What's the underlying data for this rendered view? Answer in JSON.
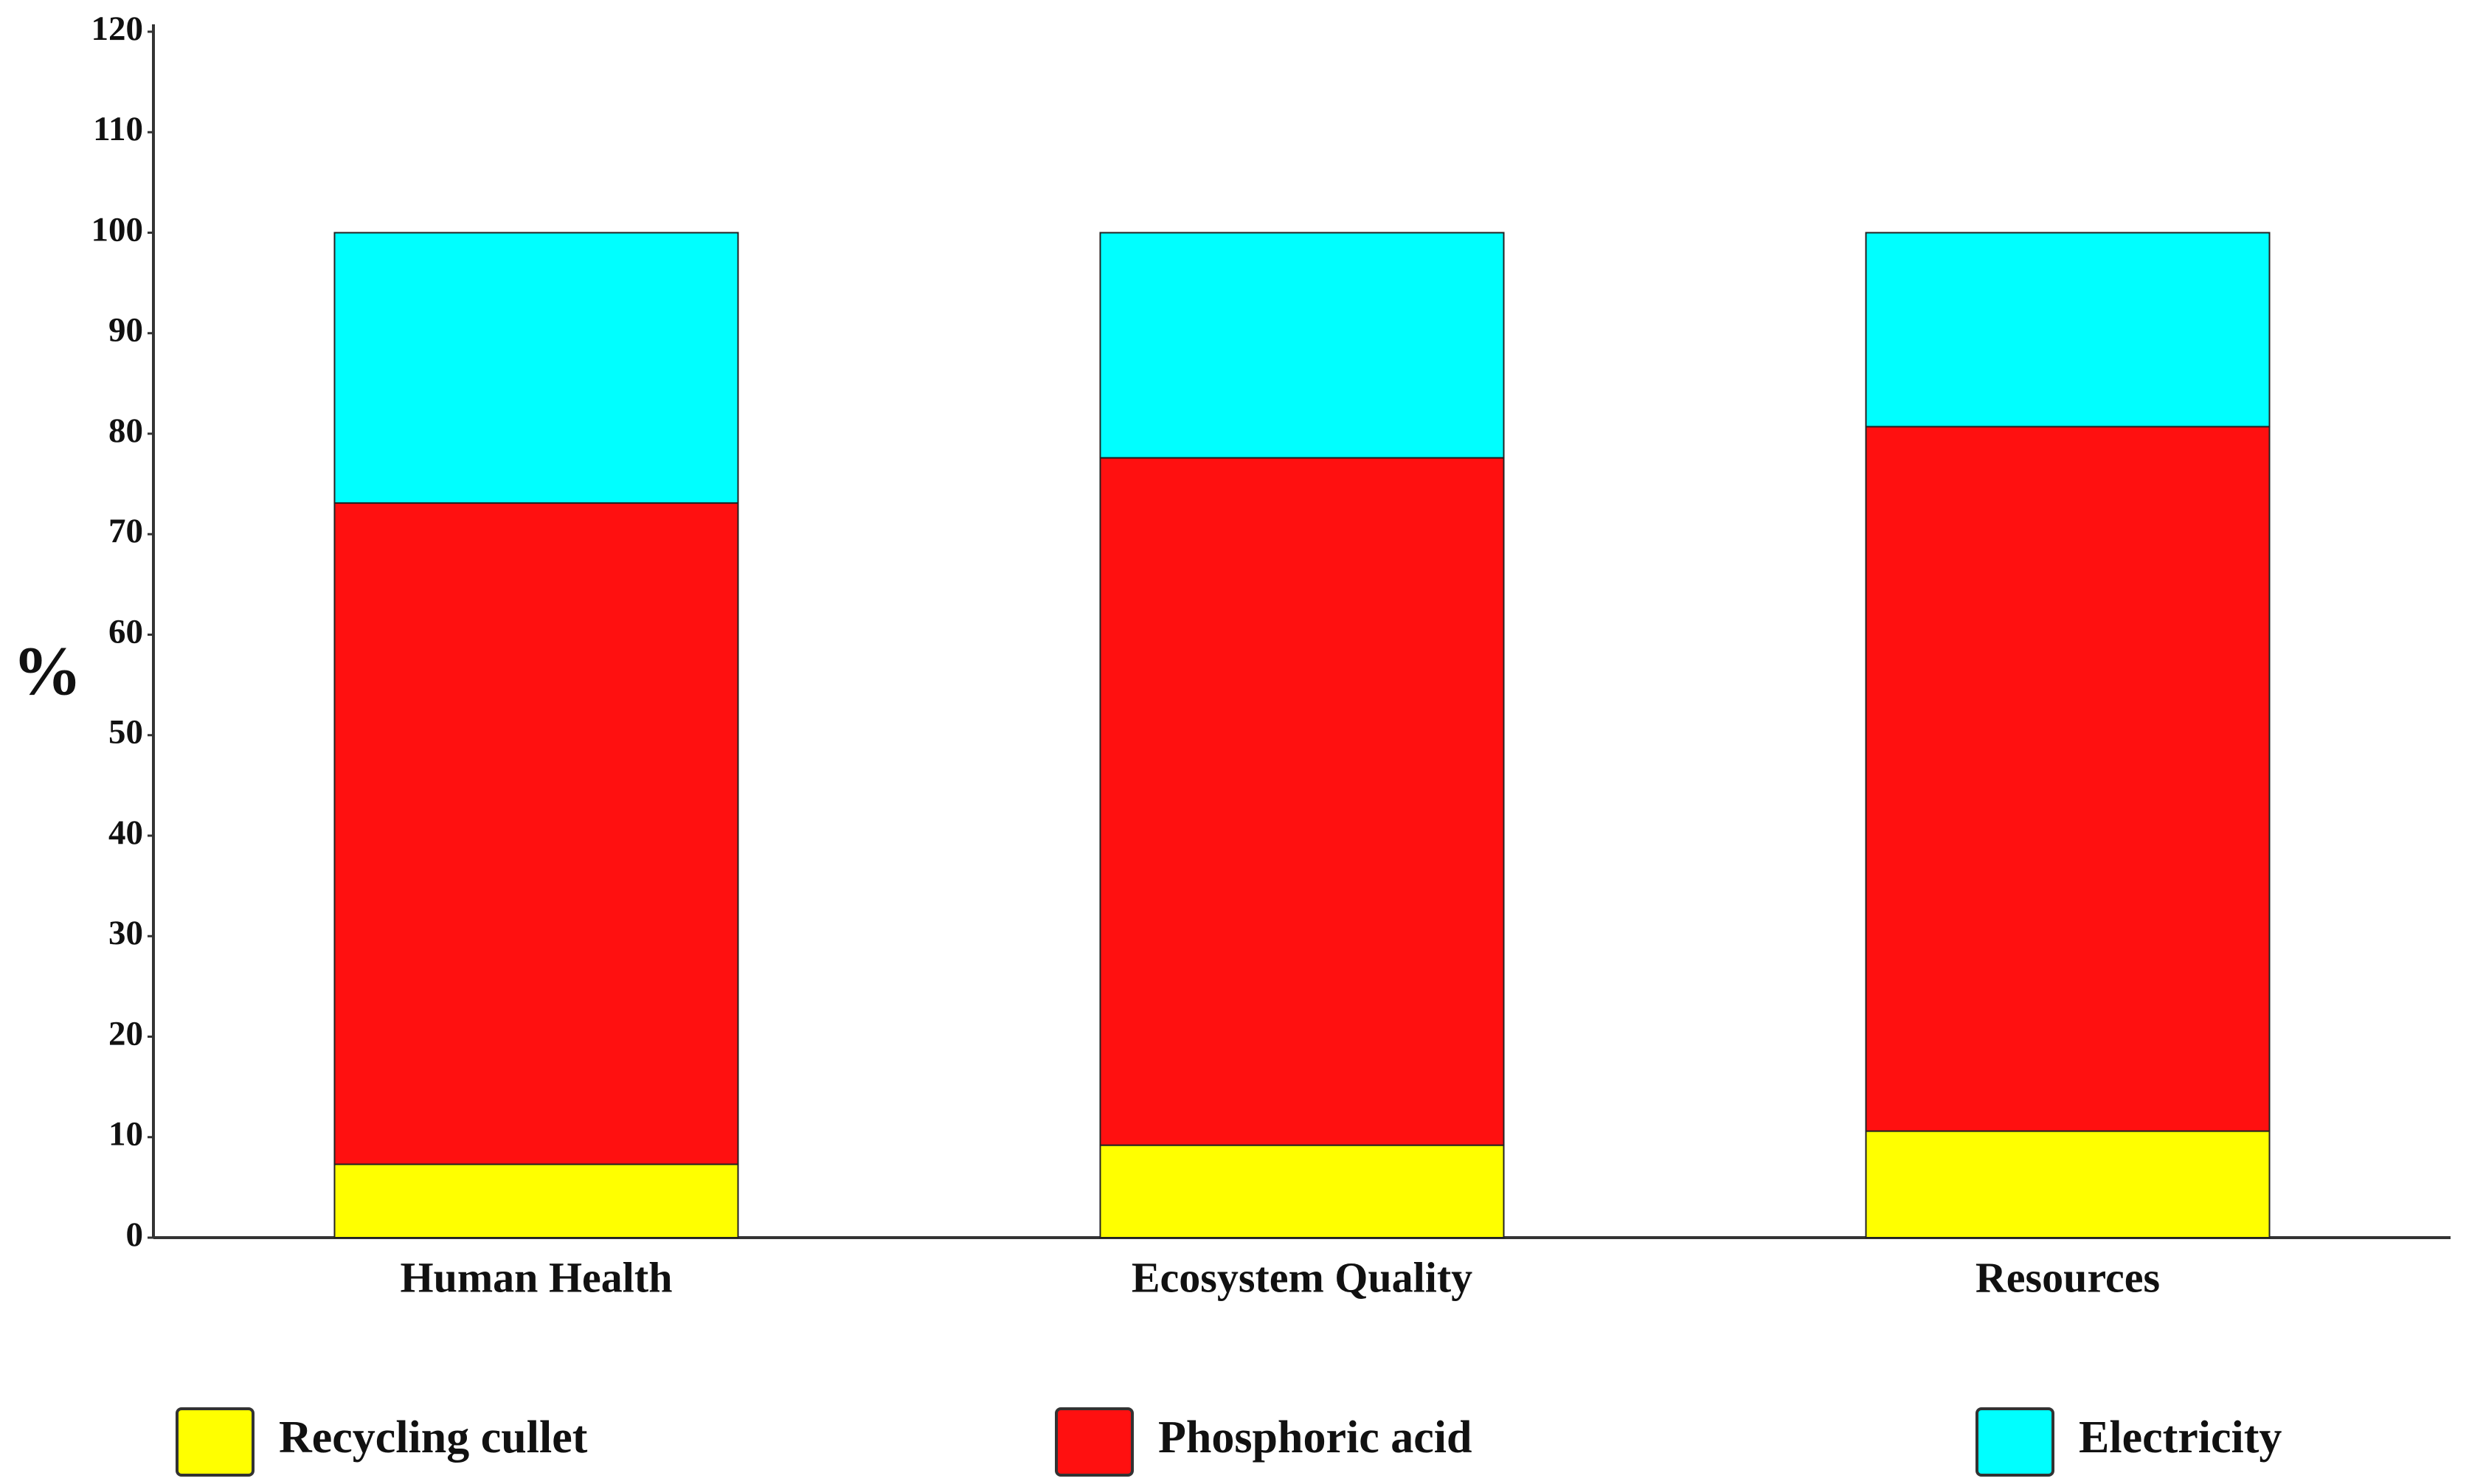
{
  "chart_data": {
    "type": "stacked-bar",
    "y_label": "%",
    "categories": [
      "Human Health",
      "Ecosystem Quality",
      "Resources"
    ],
    "series": [
      {
        "name": "Recycling cullet",
        "color": "#ffff00",
        "values": [
          7.3,
          9.2,
          10.6
        ]
      },
      {
        "name": "Phosphoric acid",
        "color": "#ff1010",
        "values": [
          65.8,
          68.4,
          70.1
        ]
      },
      {
        "name": "Electricity",
        "color": "#00ffff",
        "values": [
          26.9,
          22.4,
          19.3
        ]
      }
    ],
    "ylim": [
      0,
      120
    ],
    "yticks": [
      0,
      10,
      20,
      30,
      40,
      50,
      60,
      70,
      80,
      90,
      100,
      110,
      120
    ],
    "grid": false,
    "legend": "bottom"
  }
}
